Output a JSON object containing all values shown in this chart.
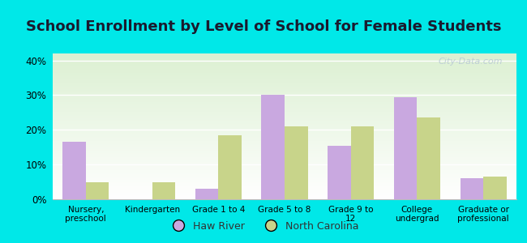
{
  "title": "School Enrollment by Level of School for Female Students",
  "categories": [
    "Nursery,\npreschool",
    "Kindergarten",
    "Grade 1 to 4",
    "Grade 5 to 8",
    "Grade 9 to\n12",
    "College\nundergrad",
    "Graduate or\nprofessional"
  ],
  "haw_river": [
    16.5,
    0.0,
    3.0,
    30.0,
    15.5,
    29.5,
    6.0
  ],
  "north_carolina": [
    5.0,
    5.0,
    18.5,
    21.0,
    21.0,
    23.5,
    6.5
  ],
  "haw_river_color": "#c9a8e0",
  "north_carolina_color": "#c8d48a",
  "background_outer": "#00e8e8",
  "ylim": [
    0,
    42
  ],
  "yticks": [
    0,
    10,
    20,
    30,
    40
  ],
  "ytick_labels": [
    "0%",
    "10%",
    "20%",
    "30%",
    "40%"
  ],
  "bar_width": 0.35,
  "title_fontsize": 13,
  "legend_label_haw": "Haw River",
  "legend_label_nc": "North Carolina",
  "watermark": "City-Data.com"
}
